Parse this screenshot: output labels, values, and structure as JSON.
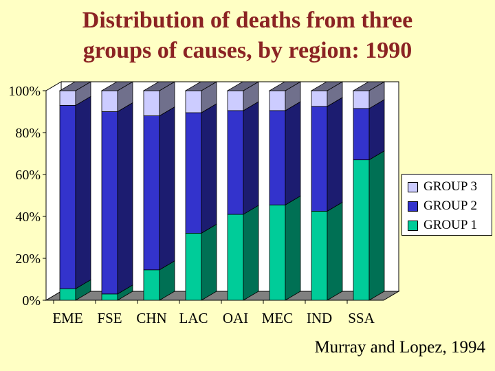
{
  "title_lines": [
    "Distribution of deaths from three",
    "groups of causes, by region: 1990"
  ],
  "source": "Murray and Lopez, 1994",
  "colors": {
    "group1": "#00cc99",
    "group2": "#3333cc",
    "group3": "#ccccff",
    "frame": "#ffffff",
    "floor": "#808080",
    "title": "#8b2323"
  },
  "chart_data": {
    "type": "bar",
    "stacked": true,
    "percent": true,
    "title": "Distribution of deaths from three groups of causes, by region: 1990",
    "categories": [
      "EME",
      "FSE",
      "CHN",
      "LAC",
      "OAI",
      "MEC",
      "IND",
      "SSA"
    ],
    "series": [
      {
        "name": "GROUP 1",
        "values": [
          5.5,
          3,
          14.5,
          32,
          41,
          45.5,
          42.5,
          67
        ]
      },
      {
        "name": "GROUP 2",
        "values": [
          87.5,
          87,
          73.5,
          57.5,
          49.5,
          45,
          50,
          24.5
        ]
      },
      {
        "name": "GROUP 3",
        "values": [
          7,
          10,
          12,
          10.5,
          9.5,
          9.5,
          7.5,
          8.5
        ]
      }
    ],
    "yticks": [
      "0%",
      "20%",
      "40%",
      "60%",
      "80%",
      "100%"
    ],
    "ylim": [
      0,
      100
    ],
    "legend": "right",
    "legend_entries": [
      "GROUP 3",
      "GROUP 2",
      "GROUP 1"
    ]
  }
}
